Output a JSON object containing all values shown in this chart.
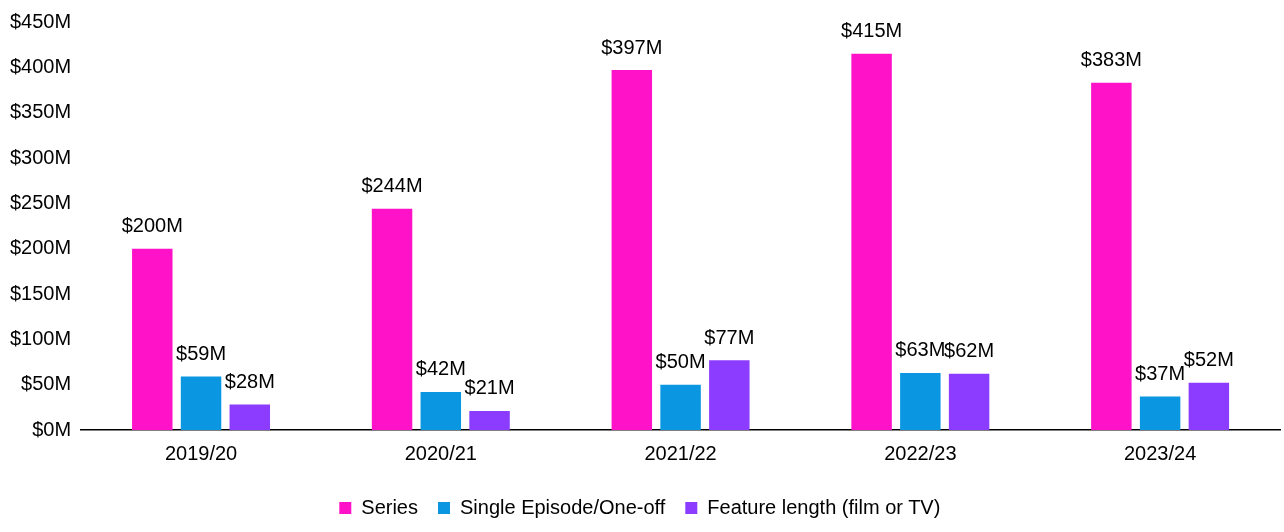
{
  "chart_data": {
    "type": "bar",
    "categories": [
      "2019/20",
      "2020/21",
      "2021/22",
      "2022/23",
      "2023/24"
    ],
    "series": [
      {
        "name": "Series",
        "color": "#ff12c8",
        "values": [
          200,
          244,
          397,
          415,
          383
        ],
        "value_labels": [
          "$200M",
          "$244M",
          "$397M",
          "$415M",
          "$383M"
        ]
      },
      {
        "name": "Single Episode/One-off",
        "color": "#0a96e0",
        "values": [
          59,
          42,
          50,
          63,
          37
        ],
        "value_labels": [
          "$59M",
          "$42M",
          "$50M",
          "$63M",
          "$37M"
        ]
      },
      {
        "name": "Feature length (film or TV)",
        "color": "#8c3cff",
        "values": [
          28,
          21,
          77,
          62,
          52
        ],
        "value_labels": [
          "$28M",
          "$21M",
          "$77M",
          "$62M",
          "$52M"
        ]
      }
    ],
    "ylim": [
      0,
      450
    ],
    "yticks": [
      {
        "value": 0,
        "label": "$0M"
      },
      {
        "value": 50,
        "label": "$50M"
      },
      {
        "value": 100,
        "label": "$100M"
      },
      {
        "value": 150,
        "label": "$150M"
      },
      {
        "value": 200,
        "label": "$200M"
      },
      {
        "value": 250,
        "label": "$250M"
      },
      {
        "value": 300,
        "label": "$300M"
      },
      {
        "value": 350,
        "label": "$350M"
      },
      {
        "value": 400,
        "label": "$400M"
      },
      {
        "value": 450,
        "label": "$450M"
      }
    ],
    "grid": false,
    "legend": "bottom"
  }
}
